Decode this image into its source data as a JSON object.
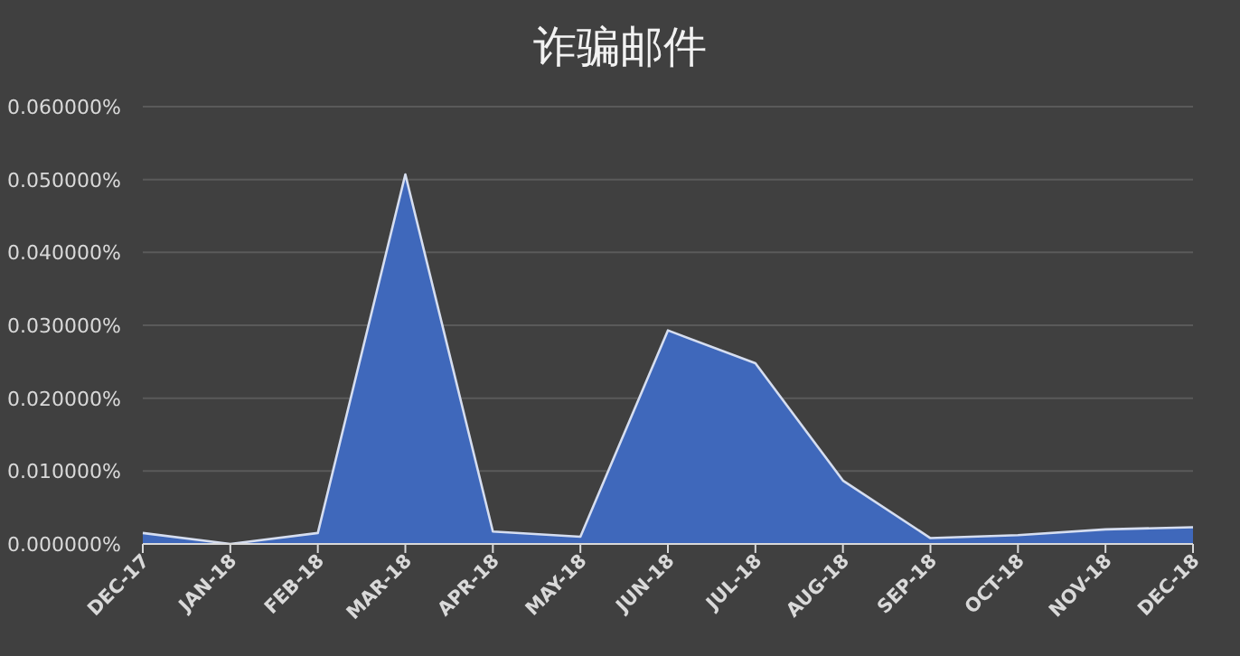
{
  "chart_data": {
    "type": "area",
    "title": "诈骗邮件",
    "categories": [
      "DEC-17",
      "JAN-18",
      "FEB-18",
      "MAR-18",
      "APR-18",
      "MAY-18",
      "JUN-18",
      "JUL-18",
      "AUG-18",
      "SEP-18",
      "OCT-18",
      "NOV-18",
      "DEC-18"
    ],
    "values": [
      0.0015,
      0,
      0.0015,
      0.0507,
      0.0017,
      0.001,
      0.0293,
      0.0248,
      0.0087,
      0.0008,
      0.0012,
      0.002,
      0.0023
    ],
    "color": "#3f68bb",
    "ylim": [
      0,
      0.06
    ],
    "yticks": [
      {
        "value": 0,
        "label": "0.000000%"
      },
      {
        "value": 0.01,
        "label": "0.010000%"
      },
      {
        "value": 0.02,
        "label": "0.020000%"
      },
      {
        "value": 0.03,
        "label": "0.030000%"
      },
      {
        "value": 0.04,
        "label": "0.040000%"
      },
      {
        "value": 0.05,
        "label": "0.050000%"
      },
      {
        "value": 0.06,
        "label": "0.060000%"
      }
    ],
    "grid": "y"
  }
}
